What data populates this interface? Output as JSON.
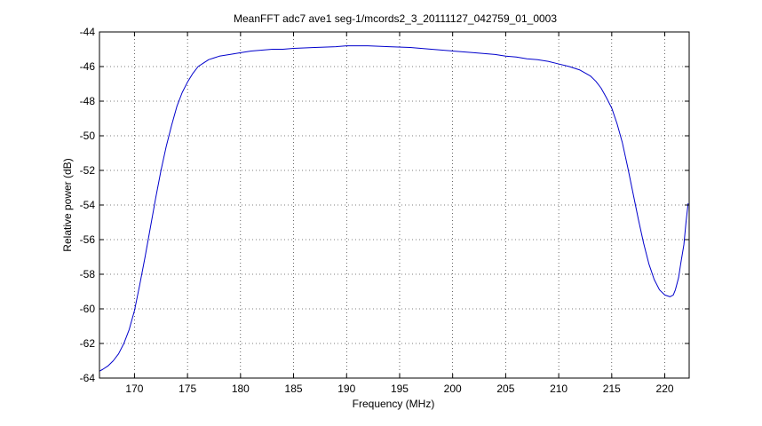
{
  "chart_data": {
    "type": "line",
    "title": "MeanFFT adc7 ave1 seg-1/mcords2_3_20111127_042759_01_0003",
    "xlabel": "Frequency (MHz)",
    "ylabel": "Relative power (dB)",
    "xlim": [
      166.7,
      222.3
    ],
    "ylim": [
      -64,
      -44
    ],
    "xticks": [
      170,
      175,
      180,
      185,
      190,
      195,
      200,
      205,
      210,
      215,
      220
    ],
    "yticks": [
      -64,
      -62,
      -60,
      -58,
      -56,
      -54,
      -52,
      -50,
      -48,
      -46,
      -44
    ],
    "grid": true,
    "grid_style": "dotted",
    "line_color": "#0000cc",
    "series": [
      {
        "name": "",
        "x": [
          166.7,
          167.0,
          167.5,
          168.0,
          168.5,
          169.0,
          169.5,
          170.0,
          170.5,
          171.0,
          171.5,
          172.0,
          172.5,
          173.0,
          173.5,
          174.0,
          174.5,
          175.0,
          175.5,
          176.0,
          176.5,
          177.0,
          177.5,
          178.0,
          179.0,
          180.0,
          181.0,
          182.0,
          183.0,
          184.0,
          185.0,
          187.0,
          189.0,
          190.0,
          192.0,
          194.0,
          196.0,
          198.0,
          200.0,
          202.0,
          204.0,
          205.0,
          206.0,
          207.0,
          208.0,
          209.0,
          210.0,
          211.0,
          212.0,
          213.0,
          213.5,
          214.0,
          214.5,
          215.0,
          215.5,
          216.0,
          216.5,
          217.0,
          217.5,
          218.0,
          218.5,
          219.0,
          219.5,
          220.0,
          220.5,
          220.8,
          221.0,
          221.3,
          221.5,
          221.8,
          222.0,
          222.2
        ],
        "y": [
          -63.6,
          -63.5,
          -63.3,
          -63.0,
          -62.6,
          -62.0,
          -61.2,
          -60.1,
          -58.6,
          -57.0,
          -55.3,
          -53.6,
          -52.0,
          -50.6,
          -49.4,
          -48.3,
          -47.5,
          -46.9,
          -46.4,
          -46.0,
          -45.8,
          -45.6,
          -45.5,
          -45.4,
          -45.3,
          -45.2,
          -45.1,
          -45.05,
          -45.0,
          -45.0,
          -44.95,
          -44.9,
          -44.85,
          -44.8,
          -44.8,
          -44.85,
          -44.9,
          -45.0,
          -45.1,
          -45.2,
          -45.3,
          -45.4,
          -45.45,
          -45.55,
          -45.6,
          -45.7,
          -45.85,
          -46.0,
          -46.2,
          -46.55,
          -46.85,
          -47.25,
          -47.8,
          -48.4,
          -49.3,
          -50.4,
          -51.8,
          -53.3,
          -54.8,
          -56.2,
          -57.4,
          -58.3,
          -58.9,
          -59.2,
          -59.3,
          -59.2,
          -58.9,
          -58.2,
          -57.4,
          -56.3,
          -55.0,
          -53.9
        ]
      }
    ]
  }
}
